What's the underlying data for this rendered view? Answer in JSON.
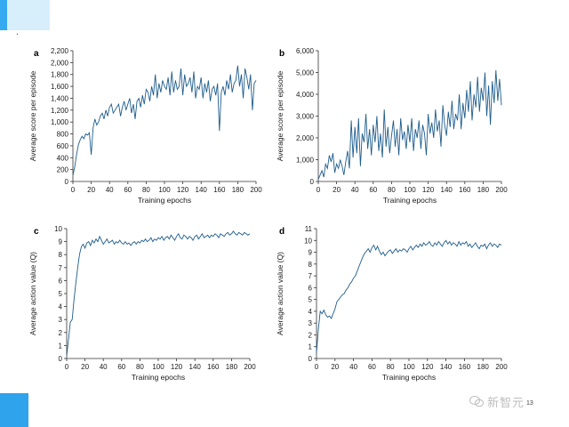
{
  "corner_mark": "˔",
  "page_number": "13",
  "watermark": {
    "text": "新智元"
  },
  "colors": {
    "series": "#1f5d8c",
    "accent_blue": "#35aaf0"
  },
  "chart_data": [
    {
      "panel": "a",
      "type": "line",
      "xlabel": "Training epochs",
      "ylabel": "Average score per episode",
      "xlim": [
        0,
        200
      ],
      "ylim": [
        0,
        2200
      ],
      "xticks": [
        0,
        20,
        40,
        60,
        80,
        100,
        120,
        140,
        160,
        180,
        200
      ],
      "yticks": [
        0,
        200,
        400,
        600,
        800,
        1000,
        1200,
        1400,
        1600,
        1800,
        2000,
        2200
      ],
      "ytick_labels": [
        "0",
        "200",
        "400",
        "600",
        "800",
        "1,000",
        "1,200",
        "1,400",
        "1,600",
        "1,800",
        "2,000",
        "2,200"
      ],
      "x": [
        0,
        2,
        4,
        6,
        8,
        10,
        12,
        14,
        16,
        18,
        20,
        22,
        24,
        26,
        28,
        30,
        32,
        34,
        36,
        38,
        40,
        42,
        44,
        46,
        48,
        50,
        52,
        54,
        56,
        58,
        60,
        62,
        64,
        66,
        68,
        70,
        72,
        74,
        76,
        78,
        80,
        82,
        84,
        86,
        88,
        90,
        92,
        94,
        96,
        98,
        100,
        102,
        104,
        106,
        108,
        110,
        112,
        114,
        116,
        118,
        120,
        122,
        124,
        126,
        128,
        130,
        132,
        134,
        136,
        138,
        140,
        142,
        144,
        146,
        148,
        150,
        152,
        154,
        156,
        158,
        160,
        162,
        164,
        166,
        168,
        170,
        172,
        174,
        176,
        178,
        180,
        182,
        184,
        186,
        188,
        190,
        192,
        194,
        196,
        198,
        200
      ],
      "y": [
        100,
        250,
        450,
        620,
        700,
        760,
        720,
        800,
        780,
        820,
        450,
        900,
        1050,
        950,
        1000,
        1100,
        1150,
        1050,
        1200,
        1100,
        1250,
        1300,
        1150,
        1200,
        1250,
        1300,
        1100,
        1250,
        1350,
        1200,
        1300,
        1400,
        1150,
        1300,
        1050,
        1350,
        1400,
        1250,
        1450,
        1300,
        1550,
        1500,
        1350,
        1600,
        1450,
        1800,
        1400,
        1650,
        1500,
        1700,
        1600,
        1550,
        1750,
        1450,
        1850,
        1500,
        1700,
        1550,
        1600,
        1900,
        1450,
        1800,
        1600,
        1650,
        1750,
        1500,
        1850,
        1400,
        1600,
        1550,
        1750,
        1400,
        1650,
        1500,
        1700,
        1350,
        1550,
        1600,
        1450,
        1650,
        850,
        1500,
        1600,
        1450,
        1700,
        1550,
        1800,
        1500,
        1650,
        1700,
        1950,
        1600,
        1800,
        1400,
        1900,
        1750,
        1550,
        1800,
        1200,
        1650,
        1700
      ]
    },
    {
      "panel": "b",
      "type": "line",
      "xlabel": "Training epochs",
      "ylabel": "Average score per episode",
      "xlim": [
        0,
        200
      ],
      "ylim": [
        0,
        6000
      ],
      "xticks": [
        0,
        20,
        40,
        60,
        80,
        100,
        120,
        140,
        160,
        180,
        200
      ],
      "yticks": [
        0,
        1000,
        2000,
        3000,
        4000,
        5000,
        6000
      ],
      "ytick_labels": [
        "0",
        "1,000",
        "2,000",
        "3,000",
        "4,000",
        "5,000",
        "6,000"
      ],
      "x": [
        0,
        2,
        4,
        6,
        8,
        10,
        12,
        14,
        16,
        18,
        20,
        22,
        24,
        26,
        28,
        30,
        32,
        34,
        36,
        38,
        40,
        42,
        44,
        46,
        48,
        50,
        52,
        54,
        56,
        58,
        60,
        62,
        64,
        66,
        68,
        70,
        72,
        74,
        76,
        78,
        80,
        82,
        84,
        86,
        88,
        90,
        92,
        94,
        96,
        98,
        100,
        102,
        104,
        106,
        108,
        110,
        112,
        114,
        116,
        118,
        120,
        122,
        124,
        126,
        128,
        130,
        132,
        134,
        136,
        138,
        140,
        142,
        144,
        146,
        148,
        150,
        152,
        154,
        156,
        158,
        160,
        162,
        164,
        166,
        168,
        170,
        172,
        174,
        176,
        178,
        180,
        182,
        184,
        186,
        188,
        190,
        192,
        194,
        196,
        198,
        200
      ],
      "y": [
        100,
        300,
        500,
        200,
        800,
        600,
        1200,
        900,
        1300,
        400,
        800,
        600,
        1000,
        700,
        300,
        900,
        1400,
        600,
        2800,
        1100,
        2500,
        1300,
        2900,
        700,
        2200,
        1800,
        3100,
        1500,
        2400,
        1200,
        2600,
        1800,
        3000,
        1400,
        2200,
        1100,
        3300,
        1600,
        2500,
        1300,
        2100,
        2800,
        1600,
        2400,
        1200,
        2900,
        1900,
        2300,
        1500,
        2600,
        1800,
        2900,
        1400,
        2400,
        2000,
        2800,
        1500,
        2600,
        2200,
        1200,
        3100,
        2200,
        2700,
        2000,
        3300,
        2300,
        2800,
        1600,
        3500,
        2600,
        2100,
        3200,
        2500,
        3700,
        2400,
        3100,
        2800,
        4000,
        2400,
        3600,
        2900,
        4200,
        3200,
        4600,
        2800,
        4000,
        3400,
        4800,
        3200,
        4300,
        3700,
        5000,
        3000,
        4400,
        2600,
        4600,
        3600,
        5100,
        3700,
        4700,
        3500
      ]
    },
    {
      "panel": "c",
      "type": "line",
      "xlabel": "Training epochs",
      "ylabel": "Average action value (Q)",
      "xlim": [
        0,
        200
      ],
      "ylim": [
        0,
        10
      ],
      "xticks": [
        0,
        20,
        40,
        60,
        80,
        100,
        120,
        140,
        160,
        180,
        200
      ],
      "yticks": [
        0,
        1,
        2,
        3,
        4,
        5,
        6,
        7,
        8,
        9,
        10
      ],
      "ytick_labels": [
        "0",
        "1",
        "2",
        "3",
        "4",
        "5",
        "6",
        "7",
        "8",
        "9",
        "10"
      ],
      "x": [
        0,
        2,
        4,
        6,
        8,
        10,
        12,
        14,
        16,
        18,
        20,
        22,
        24,
        26,
        28,
        30,
        32,
        34,
        36,
        38,
        40,
        42,
        44,
        46,
        48,
        50,
        52,
        54,
        56,
        58,
        60,
        62,
        64,
        66,
        68,
        70,
        72,
        74,
        76,
        78,
        80,
        82,
        84,
        86,
        88,
        90,
        92,
        94,
        96,
        98,
        100,
        102,
        104,
        106,
        108,
        110,
        112,
        114,
        116,
        118,
        120,
        122,
        124,
        126,
        128,
        130,
        132,
        134,
        136,
        138,
        140,
        142,
        144,
        146,
        148,
        150,
        152,
        154,
        156,
        158,
        160,
        162,
        164,
        166,
        168,
        170,
        172,
        174,
        176,
        178,
        180,
        182,
        184,
        186,
        188,
        190,
        192,
        194,
        196,
        198,
        200
      ],
      "y": [
        0.2,
        1.5,
        2.8,
        3.0,
        4.5,
        5.8,
        7.0,
        8.0,
        8.6,
        8.8,
        8.5,
        8.9,
        9.0,
        8.7,
        9.1,
        8.9,
        9.2,
        9.0,
        9.4,
        9.1,
        8.8,
        9.0,
        9.2,
        8.9,
        9.0,
        9.1,
        8.8,
        9.0,
        8.9,
        9.1,
        8.9,
        8.8,
        9.0,
        8.8,
        8.9,
        8.7,
        8.9,
        9.0,
        8.8,
        9.0,
        8.9,
        9.1,
        9.0,
        9.2,
        9.0,
        9.1,
        9.3,
        9.0,
        9.2,
        9.1,
        9.3,
        9.2,
        9.4,
        9.1,
        9.3,
        9.4,
        9.2,
        9.5,
        9.3,
        9.1,
        9.4,
        9.6,
        9.3,
        9.2,
        9.5,
        9.4,
        9.2,
        9.4,
        9.3,
        9.1,
        9.4,
        9.5,
        9.2,
        9.4,
        9.6,
        9.3,
        9.4,
        9.5,
        9.3,
        9.5,
        9.4,
        9.6,
        9.5,
        9.3,
        9.6,
        9.5,
        9.4,
        9.6,
        9.7,
        9.5,
        9.6,
        9.8,
        9.6,
        9.5,
        9.7,
        9.6,
        9.5,
        9.7,
        9.6,
        9.5,
        9.6
      ]
    },
    {
      "panel": "d",
      "type": "line",
      "xlabel": "Training epochs",
      "ylabel": "Average action value (Q)",
      "xlim": [
        0,
        200
      ],
      "ylim": [
        0,
        11
      ],
      "xticks": [
        0,
        20,
        40,
        60,
        80,
        100,
        120,
        140,
        160,
        180,
        200
      ],
      "yticks": [
        0,
        1,
        2,
        3,
        4,
        5,
        6,
        7,
        8,
        9,
        10,
        11
      ],
      "ytick_labels": [
        "0",
        "1",
        "2",
        "3",
        "4",
        "5",
        "6",
        "7",
        "8",
        "9",
        "10",
        "11"
      ],
      "x": [
        0,
        2,
        4,
        6,
        8,
        10,
        12,
        14,
        16,
        18,
        20,
        22,
        24,
        26,
        28,
        30,
        32,
        34,
        36,
        38,
        40,
        42,
        44,
        46,
        48,
        50,
        52,
        54,
        56,
        58,
        60,
        62,
        64,
        66,
        68,
        70,
        72,
        74,
        76,
        78,
        80,
        82,
        84,
        86,
        88,
        90,
        92,
        94,
        96,
        98,
        100,
        102,
        104,
        106,
        108,
        110,
        112,
        114,
        116,
        118,
        120,
        122,
        124,
        126,
        128,
        130,
        132,
        134,
        136,
        138,
        140,
        142,
        144,
        146,
        148,
        150,
        152,
        154,
        156,
        158,
        160,
        162,
        164,
        166,
        168,
        170,
        172,
        174,
        176,
        178,
        180,
        182,
        184,
        186,
        188,
        190,
        192,
        194,
        196,
        198,
        200
      ],
      "y": [
        0.5,
        2.5,
        4.0,
        3.8,
        4.1,
        3.7,
        3.5,
        3.6,
        3.4,
        3.8,
        4.2,
        4.8,
        5.0,
        5.2,
        5.4,
        5.5,
        5.8,
        6.0,
        6.3,
        6.5,
        6.8,
        7.0,
        7.4,
        7.8,
        8.2,
        8.6,
        8.9,
        9.1,
        9.3,
        9.0,
        9.4,
        9.6,
        9.2,
        9.5,
        9.1,
        8.8,
        9.0,
        8.7,
        8.9,
        9.1,
        9.2,
        8.9,
        9.1,
        9.3,
        9.0,
        9.2,
        9.1,
        9.3,
        9.2,
        9.0,
        9.3,
        9.5,
        9.2,
        9.4,
        9.6,
        9.4,
        9.7,
        9.5,
        9.8,
        9.6,
        9.7,
        9.9,
        9.6,
        9.5,
        9.8,
        9.6,
        9.9,
        9.7,
        9.5,
        9.8,
        10.0,
        9.7,
        9.9,
        9.6,
        9.8,
        9.7,
        9.5,
        9.9,
        9.6,
        9.8,
        9.7,
        9.9,
        9.5,
        9.7,
        9.4,
        9.6,
        9.8,
        9.5,
        9.3,
        9.6,
        9.5,
        9.7,
        9.3,
        9.6,
        9.8,
        9.5,
        9.7,
        9.6,
        9.4,
        9.7,
        9.6
      ]
    }
  ]
}
